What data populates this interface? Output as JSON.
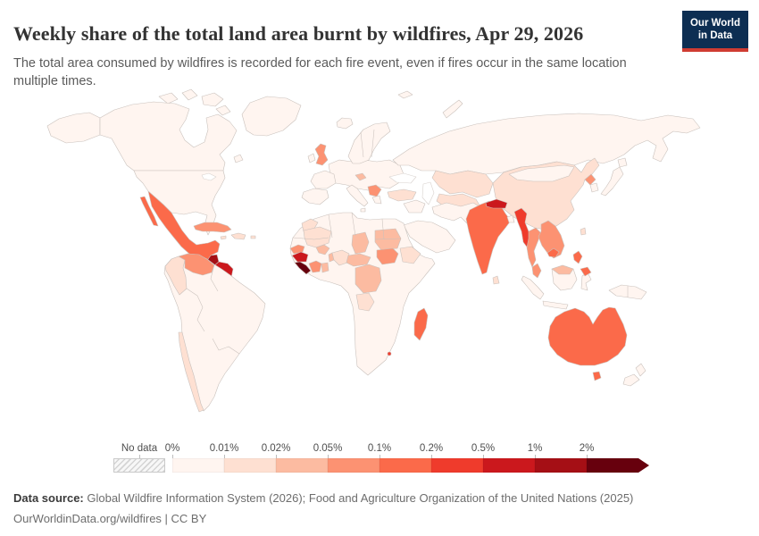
{
  "header": {
    "title": "Weekly share of the total land area burnt by wildfires, Apr 29, 2026",
    "subtitle": "The total area consumed by wildfires is recorded for each fire event, even if fires occur in the same location multiple times.",
    "logo": {
      "line1": "Our World",
      "line2": "in Data",
      "bg": "#0d2e52",
      "accent": "#cf3c32"
    }
  },
  "legend": {
    "no_data_label": "No data",
    "ticks": [
      "0%",
      "0.01%",
      "0.02%",
      "0.05%",
      "0.1%",
      "0.2%",
      "0.5%",
      "1%",
      "2%"
    ],
    "bin_colors": [
      "#fff5f0",
      "#fee0d2",
      "#fcbba1",
      "#fc9272",
      "#fb6a4a",
      "#ef3b2c",
      "#cb181d",
      "#a50f15",
      "#67000d"
    ]
  },
  "footer": {
    "source_label": "Data source:",
    "source_text": " Global Wildfire Information System (2026); Food and Agriculture Organization of the United Nations (2025)",
    "link_text": "OurWorldinData.org/wildfires | CC BY"
  },
  "map": {
    "border_color": "#c9c1bc",
    "sea_color": "#ffffff",
    "region_colors": {
      "greenland": "#fff5f0",
      "iceland": "#fff5f0",
      "alaska": "#fff5f0",
      "canada": "#fff5f0",
      "arctic-islands": "#fff5f0",
      "usa": "#fff5f0",
      "mexico": "#fb6a4a",
      "baja": "#fb6a4a",
      "guatemala": "#a50f15",
      "honduras-nicaragua": "#cb181d",
      "costa-rica-panama": "#fc9272",
      "cuba": "#fc9272",
      "hispaniola": "#fee0d2",
      "jamaica": "#fee0d2",
      "puerto-rico": "#fee0d2",
      "south-america": "#fff5f0",
      "colombia": "#fee0d2",
      "venezuela": "#fc9272",
      "chile": "#fee0d2",
      "africa": "#fff5f0",
      "senegal": "#fc9272",
      "guinea": "#cb181d",
      "sierra-leone-liberia": "#67000d",
      "ivory-coast": "#fc9272",
      "ghana": "#fcbba1",
      "mali": "#fee0d2",
      "burkina-faso": "#fcbba1",
      "nigeria": "#fee0d2",
      "benin-togo": "#fcbba1",
      "chad": "#fcbba1",
      "sudan": "#fcbba1",
      "south-sudan": "#fc9272",
      "ethiopia": "#fee0d2",
      "cameroon-car": "#fcbba1",
      "drc": "#fcbba1",
      "angola": "#fee0d2",
      "morocco": "#fee0d2",
      "madagascar": "#fb6a4a",
      "eswatini": "#ef3b2c",
      "europe": "#fff5f0",
      "france": "#fff5f0",
      "iberia": "#fff5f0",
      "uk": "#fc9272",
      "ireland": "#fff5f0",
      "scandinavia": "#fff5f0",
      "czechia": "#fcbba1",
      "italy": "#fff5f0",
      "balkans": "#fc9272",
      "greece": "#fff5f0",
      "turkey": "#fee0d2",
      "russia": "#fff5f0",
      "novaya-zemlya": "#fff5f0",
      "svalbard": "#fff5f0",
      "kazakhstan": "#fee0d2",
      "central-asia": "#fee0d2",
      "iran-afghanistan": "#fff5f0",
      "levant": "#fff5f0",
      "arabia": "#fff5f0",
      "china": "#fee0d2",
      "mongolia": "#fff5f0",
      "north-korea": "#fc9272",
      "south-korea": "#fff5f0",
      "japan": "#fff5f0",
      "india": "#fb6a4a",
      "nepal": "#cb181d",
      "bangladesh": "#fff5f0",
      "sri-lanka": "#fee0d2",
      "myanmar": "#ef3b2c",
      "thailand": "#fc9272",
      "indochina": "#fc9272",
      "cambodia": "#fb6a4a",
      "malaysia": "#fc9272",
      "sumatra": "#fff5f0",
      "java": "#fff5f0",
      "borneo": "#fff5f0",
      "borneo-malaysia": "#fcbba1",
      "sulawesi": "#fff5f0",
      "new-guinea": "#fff5f0",
      "philippines": "#fb6a4a",
      "taiwan": "#fee0d2",
      "australia": "#fb6a4a",
      "tasmania": "#fb6a4a",
      "new-zealand": "#fff5f0",
      "newfoundland": "#fff5f0"
    }
  },
  "chart_data": {
    "type": "choropleth_map",
    "title": "Weekly share of the total land area burnt by wildfires",
    "date": "Apr 29, 2026",
    "unit": "share of total land area (%)",
    "legend_bins": [
      {
        "range": "0–0.01%",
        "color": "#fff5f0"
      },
      {
        "range": "0.01–0.02%",
        "color": "#fee0d2"
      },
      {
        "range": "0.02–0.05%",
        "color": "#fcbba1"
      },
      {
        "range": "0.05–0.1%",
        "color": "#fc9272"
      },
      {
        "range": "0.1–0.2%",
        "color": "#fb6a4a"
      },
      {
        "range": "0.2–0.5%",
        "color": "#ef3b2c"
      },
      {
        "range": "0.5–1%",
        "color": "#cb181d"
      },
      {
        "range": "1–2%",
        "color": "#a50f15"
      },
      {
        "range": ">2%",
        "color": "#67000d"
      }
    ],
    "no_data": {
      "label": "No data",
      "pattern": "gray-hatched"
    },
    "regions": [
      {
        "name": "United States",
        "value_range": "0–0.01%"
      },
      {
        "name": "Canada",
        "value_range": "0–0.01%"
      },
      {
        "name": "Greenland",
        "value_range": "0–0.01%"
      },
      {
        "name": "Mexico",
        "value_range": "0.1–0.2%"
      },
      {
        "name": "Guatemala",
        "value_range": "1–2%"
      },
      {
        "name": "Honduras/Nicaragua",
        "value_range": "0.5–1%"
      },
      {
        "name": "Costa Rica/Panama",
        "value_range": "0.05–0.1%"
      },
      {
        "name": "Cuba",
        "value_range": "0.05–0.1%"
      },
      {
        "name": "Venezuela",
        "value_range": "0.05–0.1%"
      },
      {
        "name": "Colombia",
        "value_range": "0.01–0.02%"
      },
      {
        "name": "Brazil",
        "value_range": "0–0.01%"
      },
      {
        "name": "Chile",
        "value_range": "0.01–0.02%"
      },
      {
        "name": "United Kingdom",
        "value_range": "0.05–0.1%"
      },
      {
        "name": "Senegal",
        "value_range": "0.05–0.1%"
      },
      {
        "name": "Guinea",
        "value_range": "0.5–1%"
      },
      {
        "name": "Sierra Leone/Liberia",
        "value_range": ">2%"
      },
      {
        "name": "Cote d'Ivoire",
        "value_range": "0.05–0.1%"
      },
      {
        "name": "Mali",
        "value_range": "0.01–0.02%"
      },
      {
        "name": "Burkina Faso",
        "value_range": "0.02–0.05%"
      },
      {
        "name": "Chad",
        "value_range": "0.02–0.05%"
      },
      {
        "name": "Sudan",
        "value_range": "0.02–0.05%"
      },
      {
        "name": "South Sudan",
        "value_range": "0.05–0.1%"
      },
      {
        "name": "Ethiopia",
        "value_range": "0.01–0.02%"
      },
      {
        "name": "Democratic Republic of Congo",
        "value_range": "0.02–0.05%"
      },
      {
        "name": "Angola",
        "value_range": "0.01–0.02%"
      },
      {
        "name": "Madagascar",
        "value_range": "0.1–0.2%"
      },
      {
        "name": "Russia",
        "value_range": "0–0.01%"
      },
      {
        "name": "Kazakhstan",
        "value_range": "0.01–0.02%"
      },
      {
        "name": "China",
        "value_range": "0.01–0.02%"
      },
      {
        "name": "India",
        "value_range": "0.1–0.2%"
      },
      {
        "name": "Nepal",
        "value_range": "0.5–1%"
      },
      {
        "name": "Myanmar",
        "value_range": "0.2–0.5%"
      },
      {
        "name": "Thailand",
        "value_range": "0.05–0.1%"
      },
      {
        "name": "Vietnam/Laos",
        "value_range": "0.05–0.1%"
      },
      {
        "name": "Cambodia",
        "value_range": "0.1–0.2%"
      },
      {
        "name": "North Korea",
        "value_range": "0.05–0.1%"
      },
      {
        "name": "Philippines",
        "value_range": "0.1–0.2%"
      },
      {
        "name": "Malaysia",
        "value_range": "0.05–0.1%"
      },
      {
        "name": "Indonesia",
        "value_range": "0–0.01%"
      },
      {
        "name": "Australia",
        "value_range": "0.1–0.2%"
      },
      {
        "name": "New Zealand",
        "value_range": "0–0.01%"
      }
    ]
  }
}
